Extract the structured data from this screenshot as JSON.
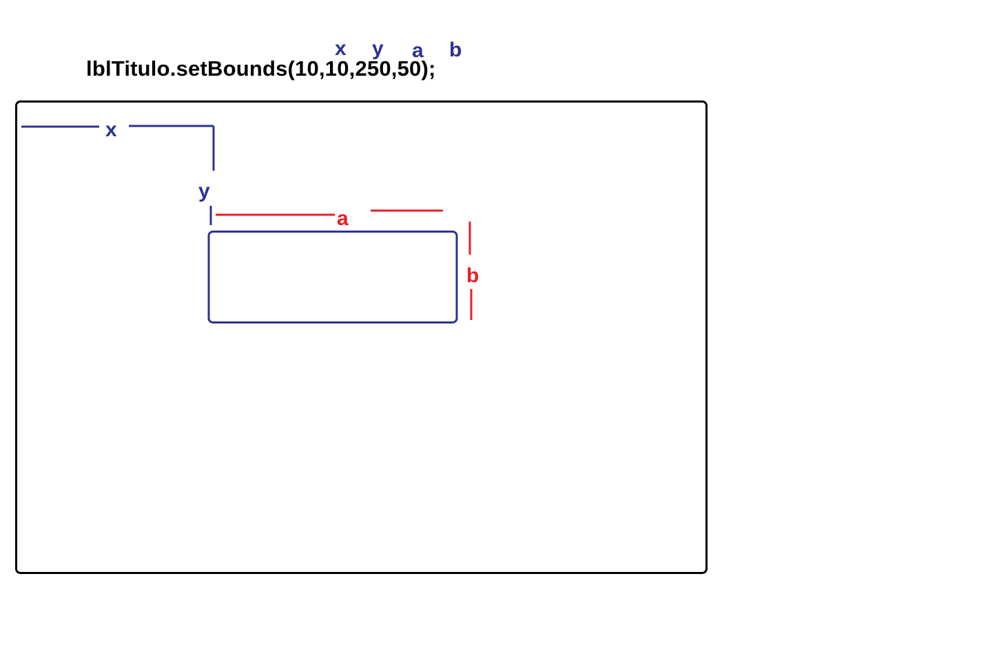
{
  "code": {
    "statement": "lblTitulo.setBounds(10,10,250,50);"
  },
  "parameter_labels": {
    "x": "x",
    "y": "y",
    "a": "a",
    "b": "b"
  },
  "diagram_labels": {
    "x": "x",
    "y": "y",
    "a": "a",
    "b": "b"
  },
  "colors": {
    "code_text": "#000000",
    "position_color": "#2e3192",
    "size_color": "#ed1c24",
    "frame_border": "#000000"
  }
}
